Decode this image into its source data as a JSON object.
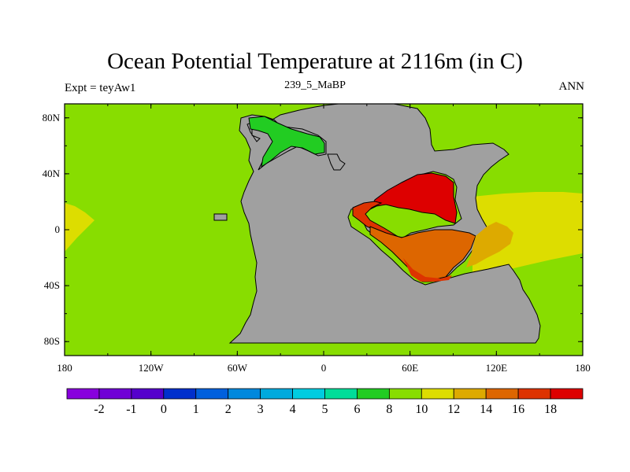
{
  "title": "Ocean Potential Temperature at 2116m (in C)",
  "subtitle": "239_5_MaBP",
  "left_label": "Expt = teyAw1",
  "right_label": "ANN",
  "map": {
    "lon_range": [
      -180,
      180
    ],
    "lat_range": [
      -90,
      90
    ],
    "lon_ticks": [
      {
        "value": -180,
        "label": "180"
      },
      {
        "value": -120,
        "label": "120W"
      },
      {
        "value": -60,
        "label": "60W"
      },
      {
        "value": 0,
        "label": "0"
      },
      {
        "value": 60,
        "label": "60E"
      },
      {
        "value": 120,
        "label": "120E"
      },
      {
        "value": 180,
        "label": "180"
      }
    ],
    "lat_ticks": [
      {
        "value": 80,
        "label": "80N"
      },
      {
        "value": 40,
        "label": "40N"
      },
      {
        "value": 0,
        "label": "0"
      },
      {
        "value": -40,
        "label": "40S"
      },
      {
        "value": -80,
        "label": "80S"
      }
    ],
    "land_color": "#a0a0a0",
    "background_field_color": "#88dd00"
  },
  "colorbar": {
    "labels": [
      "-2",
      "-1",
      "0",
      "1",
      "2",
      "3",
      "4",
      "5",
      "6",
      "8",
      "10",
      "12",
      "14",
      "16",
      "18"
    ],
    "colors": [
      "#8800dd",
      "#7000d6",
      "#5500cc",
      "#0030cc",
      "#0060dd",
      "#0088dd",
      "#00aadd",
      "#00cce0",
      "#00dd99",
      "#22cc22",
      "#88dd00",
      "#dddd00",
      "#ddaa00",
      "#dd6600",
      "#dd3300",
      "#dd0000"
    ]
  }
}
